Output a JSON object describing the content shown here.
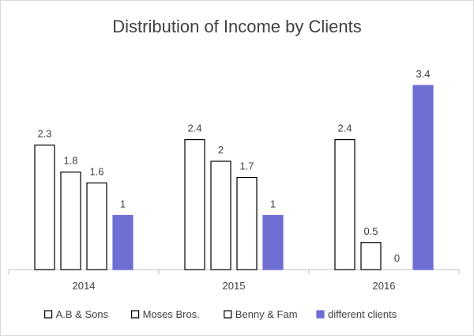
{
  "chart_data": {
    "type": "bar",
    "title": "Distribution of Income by Clients",
    "categories": [
      "2014",
      "2015",
      "2016"
    ],
    "series": [
      {
        "name": "A.B & Sons",
        "values": [
          2.3,
          2.4,
          2.4
        ],
        "fill": "#ffffff",
        "stroke": "#000000"
      },
      {
        "name": "Moses Bros.",
        "values": [
          1.8,
          2,
          0.5
        ],
        "fill": "#ffffff",
        "stroke": "#000000"
      },
      {
        "name": "Benny & Fam",
        "values": [
          1.6,
          1.7,
          0
        ],
        "fill": "#ffffff",
        "stroke": "#000000"
      },
      {
        "name": "different clients",
        "values": [
          1,
          1,
          3.4
        ],
        "fill": "#6f6fd3",
        "stroke": "#6f6fd3"
      }
    ],
    "ylim": [
      0,
      3.6
    ],
    "grid": false,
    "legend_position": "bottom",
    "data_labels": true
  }
}
